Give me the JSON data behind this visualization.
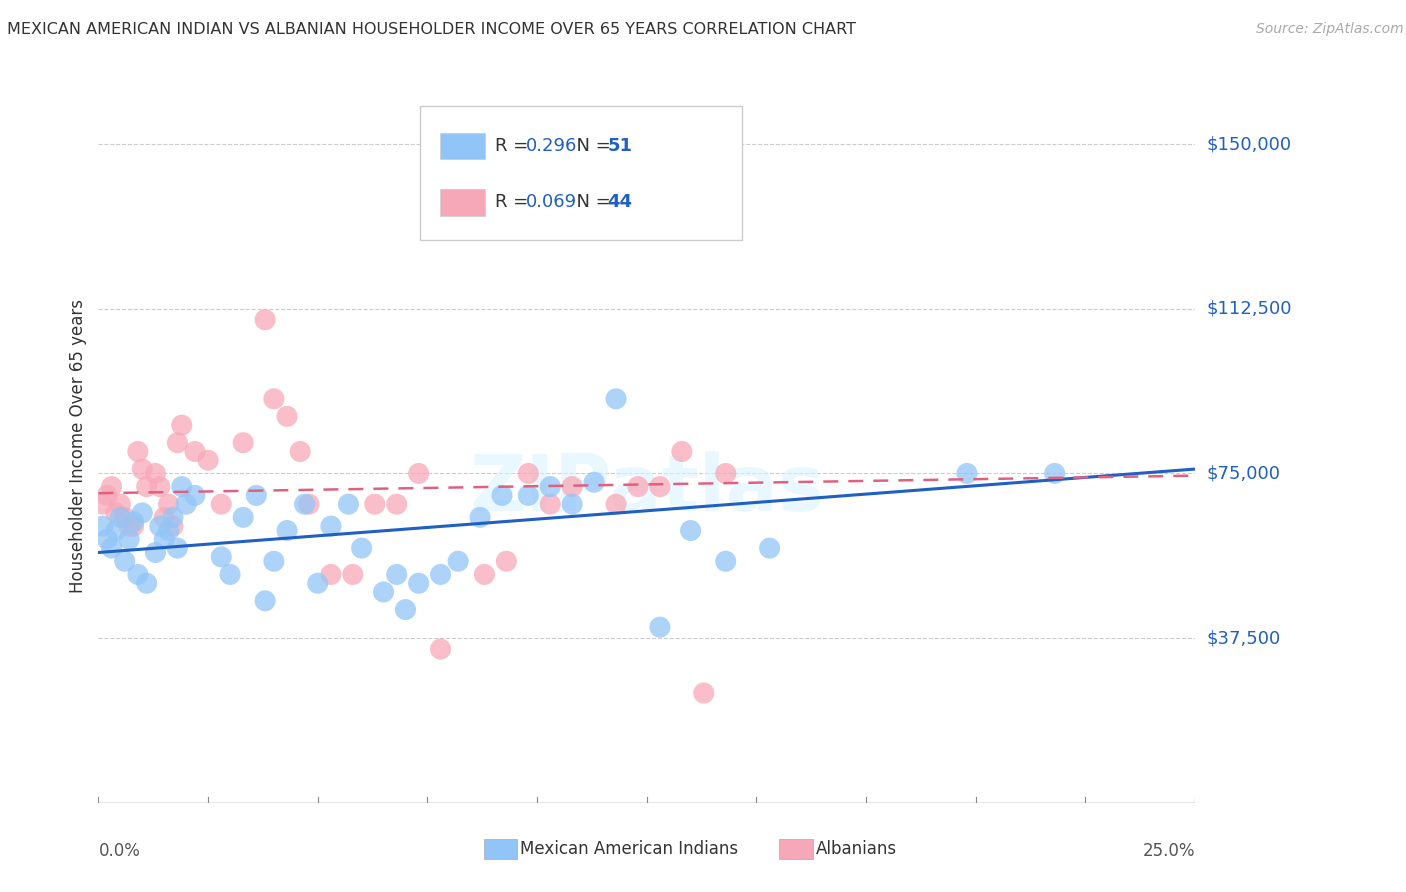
{
  "title": "MEXICAN AMERICAN INDIAN VS ALBANIAN HOUSEHOLDER INCOME OVER 65 YEARS CORRELATION CHART",
  "source": "Source: ZipAtlas.com",
  "ylabel": "Householder Income Over 65 years",
  "y_ticks": [
    0,
    37500,
    75000,
    112500,
    150000
  ],
  "y_tick_labels": [
    "",
    "$37,500",
    "$75,000",
    "$112,500",
    "$150,000"
  ],
  "xlim": [
    0.0,
    0.25
  ],
  "ylim": [
    0,
    162500
  ],
  "legend_r1": "0.296",
  "legend_n1": "51",
  "legend_r2": "0.069",
  "legend_n2": "44",
  "blue_color": "#92c5f7",
  "pink_color": "#f7a8b8",
  "blue_line_color": "#2060c0",
  "pink_line_color": "#e06080",
  "text_dark": "#333333",
  "text_blue": "#2060c0",
  "grid_color": "#cccccc",
  "blue_scatter": [
    [
      0.001,
      63000
    ],
    [
      0.002,
      60000
    ],
    [
      0.003,
      58000
    ],
    [
      0.004,
      62000
    ],
    [
      0.005,
      65000
    ],
    [
      0.006,
      55000
    ],
    [
      0.007,
      60000
    ],
    [
      0.008,
      64000
    ],
    [
      0.009,
      52000
    ],
    [
      0.01,
      66000
    ],
    [
      0.011,
      50000
    ],
    [
      0.013,
      57000
    ],
    [
      0.014,
      63000
    ],
    [
      0.015,
      60000
    ],
    [
      0.016,
      62000
    ],
    [
      0.017,
      65000
    ],
    [
      0.018,
      58000
    ],
    [
      0.019,
      72000
    ],
    [
      0.02,
      68000
    ],
    [
      0.022,
      70000
    ],
    [
      0.028,
      56000
    ],
    [
      0.03,
      52000
    ],
    [
      0.033,
      65000
    ],
    [
      0.036,
      70000
    ],
    [
      0.038,
      46000
    ],
    [
      0.04,
      55000
    ],
    [
      0.043,
      62000
    ],
    [
      0.047,
      68000
    ],
    [
      0.05,
      50000
    ],
    [
      0.053,
      63000
    ],
    [
      0.057,
      68000
    ],
    [
      0.06,
      58000
    ],
    [
      0.065,
      48000
    ],
    [
      0.068,
      52000
    ],
    [
      0.07,
      44000
    ],
    [
      0.073,
      50000
    ],
    [
      0.078,
      52000
    ],
    [
      0.082,
      55000
    ],
    [
      0.087,
      65000
    ],
    [
      0.092,
      70000
    ],
    [
      0.098,
      70000
    ],
    [
      0.103,
      72000
    ],
    [
      0.108,
      68000
    ],
    [
      0.113,
      73000
    ],
    [
      0.118,
      92000
    ],
    [
      0.128,
      40000
    ],
    [
      0.143,
      55000
    ],
    [
      0.153,
      58000
    ],
    [
      0.135,
      62000
    ],
    [
      0.198,
      75000
    ],
    [
      0.218,
      75000
    ]
  ],
  "pink_scatter": [
    [
      0.001,
      68000
    ],
    [
      0.002,
      70000
    ],
    [
      0.003,
      72000
    ],
    [
      0.004,
      66000
    ],
    [
      0.005,
      68000
    ],
    [
      0.006,
      65000
    ],
    [
      0.007,
      63000
    ],
    [
      0.008,
      63000
    ],
    [
      0.009,
      80000
    ],
    [
      0.01,
      76000
    ],
    [
      0.011,
      72000
    ],
    [
      0.013,
      75000
    ],
    [
      0.014,
      72000
    ],
    [
      0.015,
      65000
    ],
    [
      0.016,
      68000
    ],
    [
      0.017,
      63000
    ],
    [
      0.018,
      82000
    ],
    [
      0.019,
      86000
    ],
    [
      0.022,
      80000
    ],
    [
      0.025,
      78000
    ],
    [
      0.028,
      68000
    ],
    [
      0.033,
      82000
    ],
    [
      0.038,
      110000
    ],
    [
      0.04,
      92000
    ],
    [
      0.043,
      88000
    ],
    [
      0.046,
      80000
    ],
    [
      0.048,
      68000
    ],
    [
      0.053,
      52000
    ],
    [
      0.058,
      52000
    ],
    [
      0.063,
      68000
    ],
    [
      0.068,
      68000
    ],
    [
      0.073,
      75000
    ],
    [
      0.078,
      35000
    ],
    [
      0.088,
      52000
    ],
    [
      0.093,
      55000
    ],
    [
      0.098,
      75000
    ],
    [
      0.103,
      68000
    ],
    [
      0.108,
      72000
    ],
    [
      0.118,
      68000
    ],
    [
      0.123,
      72000
    ],
    [
      0.128,
      72000
    ],
    [
      0.133,
      80000
    ],
    [
      0.138,
      25000
    ],
    [
      0.143,
      75000
    ]
  ],
  "blue_line": [
    [
      0.0,
      57000
    ],
    [
      0.25,
      76000
    ]
  ],
  "pink_line": [
    [
      0.0,
      70500
    ],
    [
      0.25,
      74500
    ]
  ]
}
